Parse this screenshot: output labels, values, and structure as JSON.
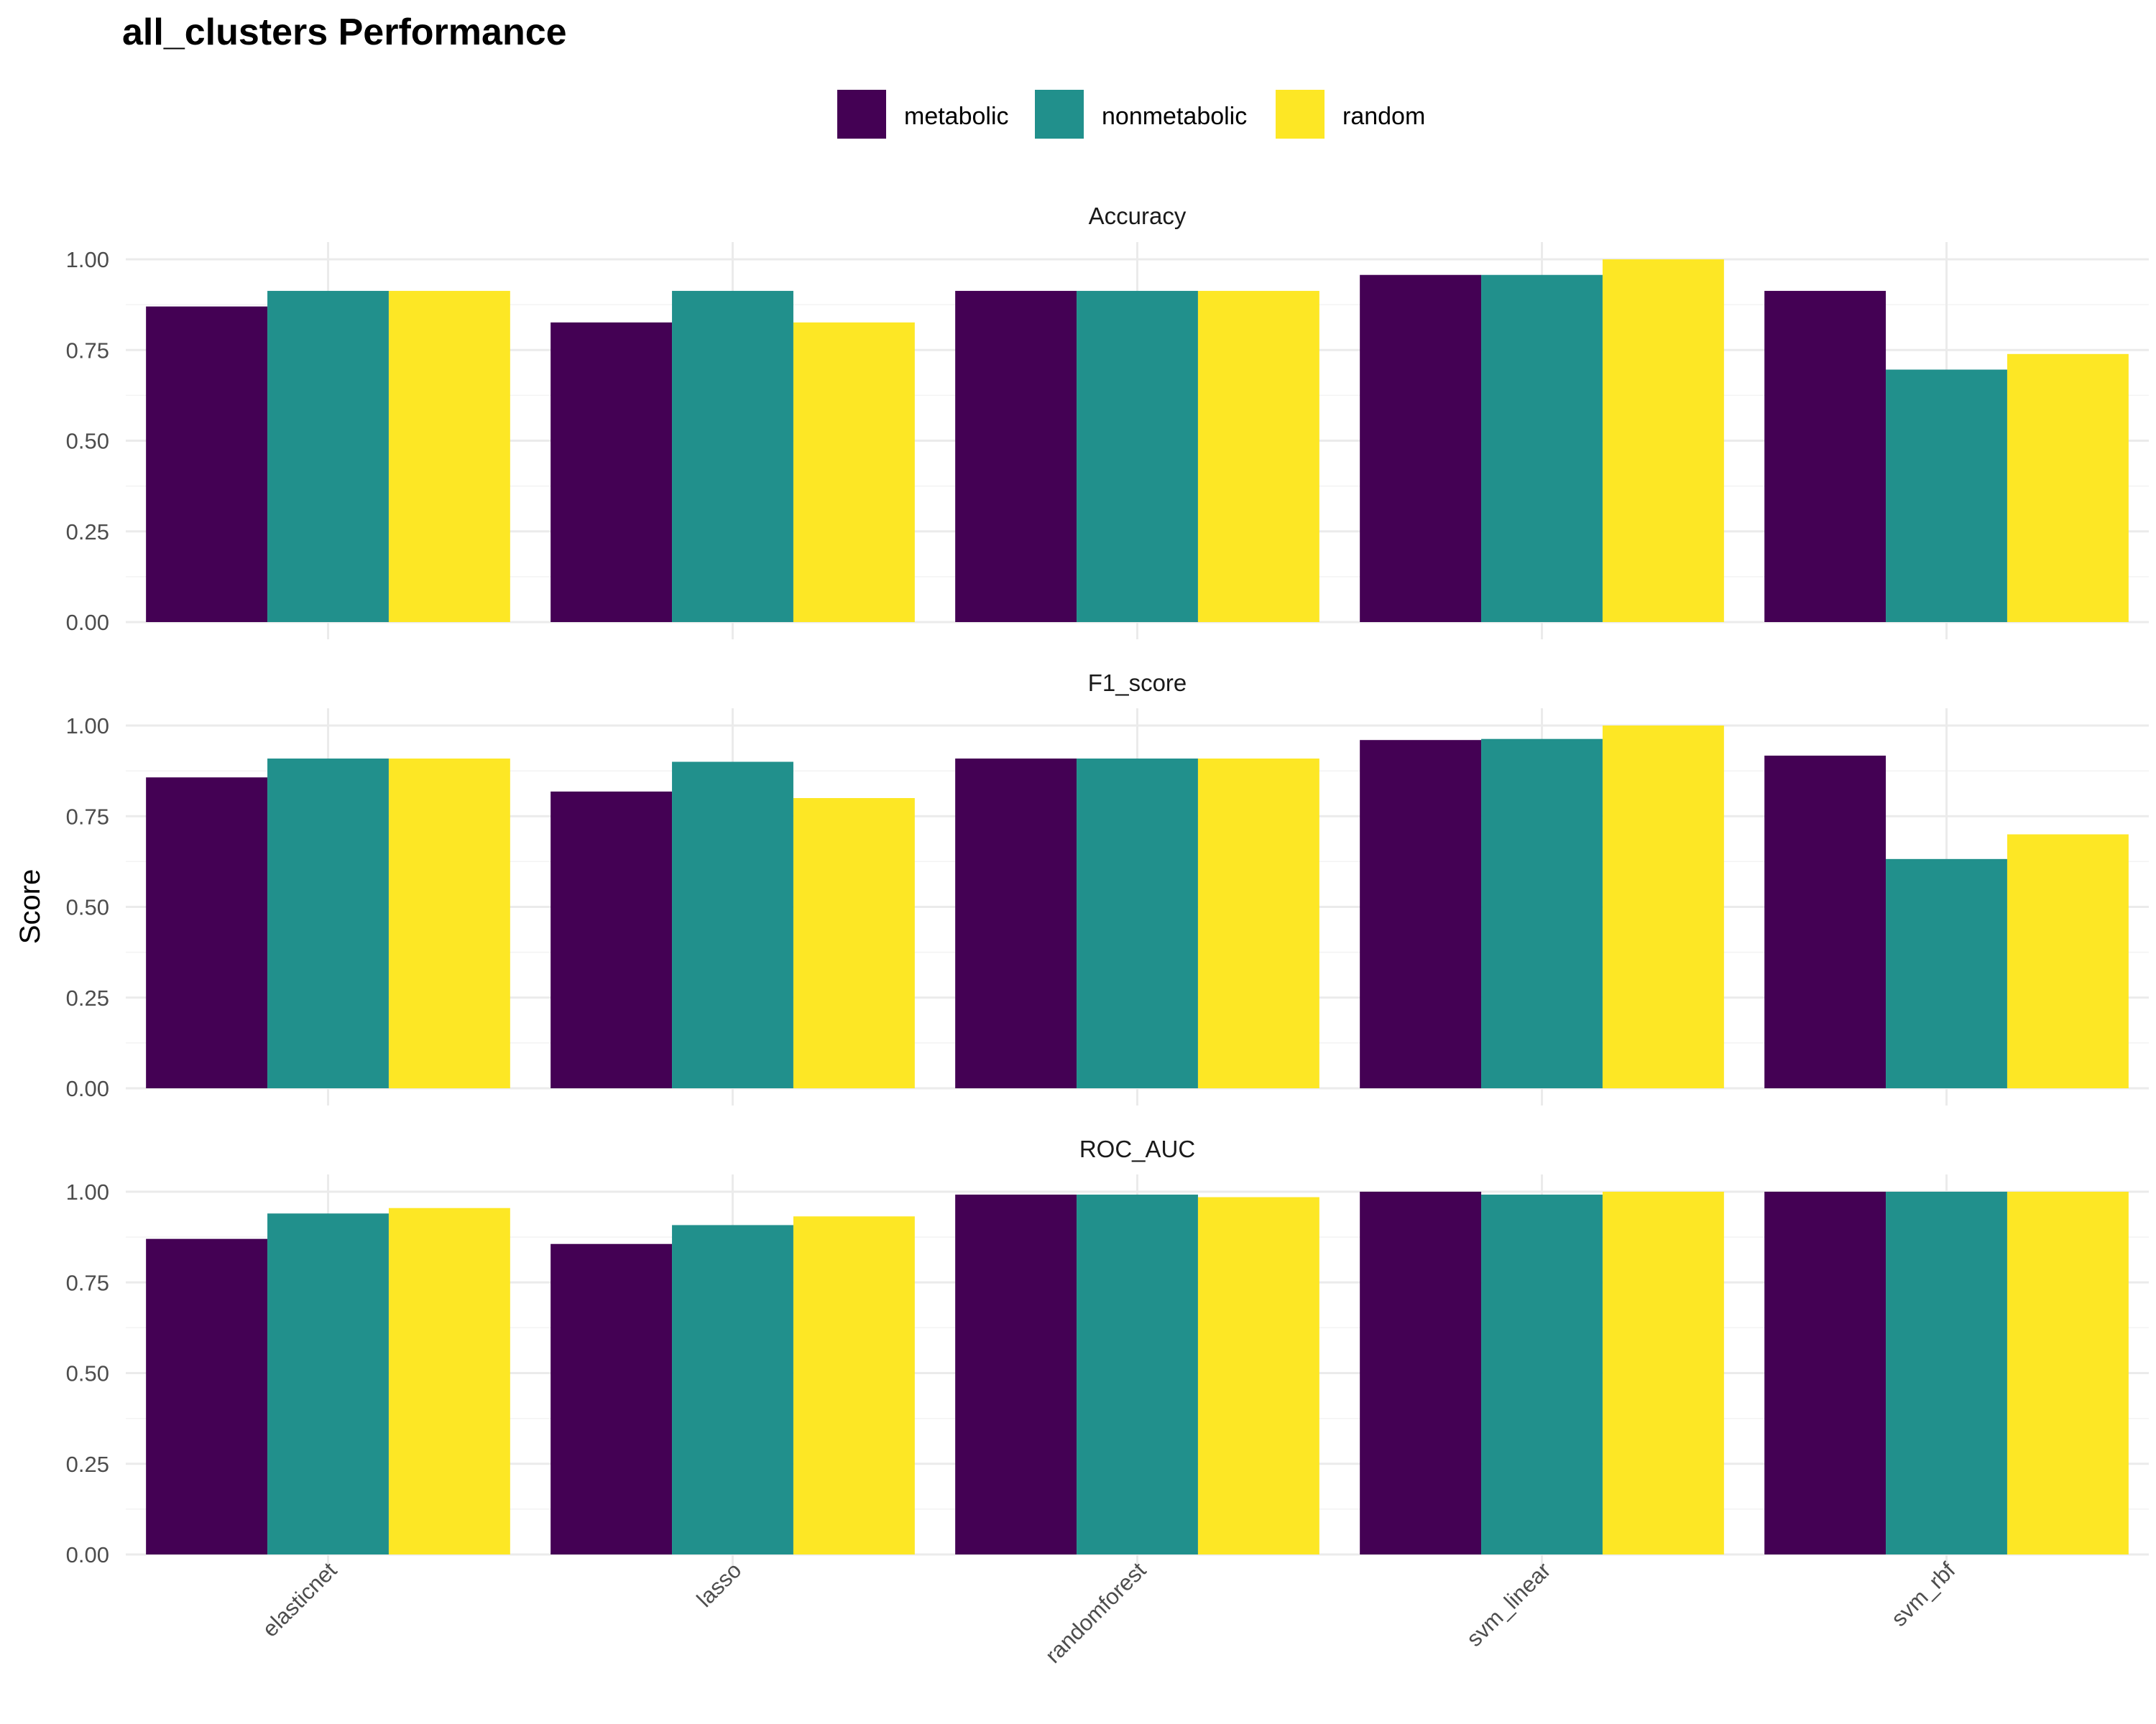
{
  "chart_data": {
    "type": "bar",
    "title": "all_clusters Performance",
    "ylabel": "Score",
    "xlabel": "",
    "ylim": [
      0,
      1
    ],
    "y_ticks": [
      "0.00",
      "0.25",
      "0.50",
      "0.75",
      "1.00"
    ],
    "y_tick_values": [
      0,
      0.25,
      0.5,
      0.75,
      1.0
    ],
    "categories": [
      "elasticnet",
      "lasso",
      "randomforest",
      "svm_linear",
      "svm_rbf"
    ],
    "legend": {
      "placement": "top",
      "entries": [
        "metabolic",
        "nonmetabolic",
        "random"
      ]
    },
    "colors": {
      "metabolic": "#440154",
      "nonmetabolic": "#21908C",
      "random": "#FDE725"
    },
    "grid": true,
    "facets": [
      {
        "label": "Accuracy",
        "series": [
          {
            "name": "metabolic",
            "values": [
              0.87,
              0.826,
              0.913,
              0.957,
              0.913
            ]
          },
          {
            "name": "nonmetabolic",
            "values": [
              0.913,
              0.913,
              0.913,
              0.957,
              0.696
            ]
          },
          {
            "name": "random",
            "values": [
              0.913,
              0.826,
              0.913,
              1.0,
              0.739
            ]
          }
        ]
      },
      {
        "label": "F1_score",
        "series": [
          {
            "name": "metabolic",
            "values": [
              0.857,
              0.818,
              0.909,
              0.96,
              0.917
            ]
          },
          {
            "name": "nonmetabolic",
            "values": [
              0.909,
              0.9,
              0.909,
              0.963,
              0.632
            ]
          },
          {
            "name": "random",
            "values": [
              0.909,
              0.8,
              0.909,
              1.0,
              0.7
            ]
          }
        ]
      },
      {
        "label": "ROC_AUC",
        "series": [
          {
            "name": "metabolic",
            "values": [
              0.87,
              0.856,
              0.992,
              1.0,
              1.0
            ]
          },
          {
            "name": "nonmetabolic",
            "values": [
              0.94,
              0.908,
              0.992,
              0.992,
              1.0
            ]
          },
          {
            "name": "random",
            "values": [
              0.955,
              0.932,
              0.985,
              1.0,
              1.0
            ]
          }
        ]
      }
    ]
  }
}
